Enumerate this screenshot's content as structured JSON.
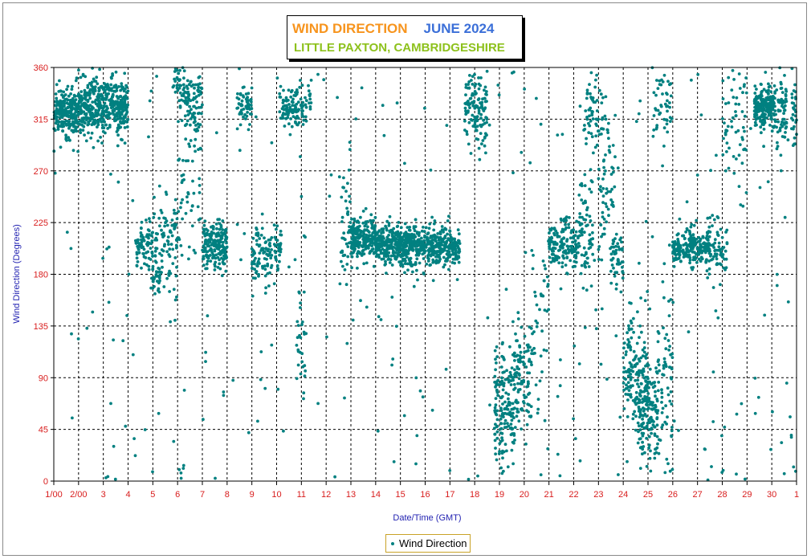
{
  "chart_data": {
    "type": "scatter",
    "title": "WIND DIRECTION",
    "title_month": "JUNE 2024",
    "subtitle": "LITTLE PAXTON, CAMBRIDGESHIRE",
    "xlabel": "Date/Time (GMT)",
    "ylabel": "Wind Direction (Degrees)",
    "ylim": [
      0,
      360
    ],
    "xlim": [
      0,
      30
    ],
    "yticks": [
      0,
      45,
      90,
      135,
      180,
      225,
      270,
      315,
      360
    ],
    "xtick_labels": [
      "1/00",
      "2/00",
      "3",
      "4",
      "5",
      "6",
      "7",
      "8",
      "9",
      "10",
      "11",
      "12",
      "13",
      "14",
      "15",
      "16",
      "17",
      "18",
      "19",
      "20",
      "21",
      "22",
      "23",
      "24",
      "25",
      "26",
      "27",
      "28",
      "29",
      "30",
      "1"
    ],
    "grid": true,
    "legend_position": "bottom-center",
    "series": [
      {
        "name": "Wind Direction",
        "color": "#008080",
        "clusters": [
          {
            "x": [
              0.0,
              1.0
            ],
            "y": 322,
            "sd": 10,
            "n": 260
          },
          {
            "x": [
              1.0,
              2.0
            ],
            "y": 325,
            "sd": 12,
            "n": 230
          },
          {
            "x": [
              2.0,
              3.0
            ],
            "y": 326,
            "sd": 12,
            "n": 230
          },
          {
            "x": [
              3.3,
              4.0
            ],
            "y": 205,
            "sd": 10,
            "n": 80
          },
          {
            "x": [
              3.9,
              4.3
            ],
            "y": 175,
            "sd": 6,
            "n": 30
          },
          {
            "x": [
              4.0,
              5.0
            ],
            "y": 210,
            "sd": 25,
            "n": 90
          },
          {
            "x": [
              4.8,
              5.5
            ],
            "y": 345,
            "sd": 12,
            "n": 50
          },
          {
            "x": [
              5.3,
              6.0
            ],
            "y": 325,
            "sd": 15,
            "n": 80
          },
          {
            "x": [
              5.0,
              6.0
            ],
            "y": 250,
            "sd": 35,
            "n": 50
          },
          {
            "x": [
              6.0,
              7.0
            ],
            "y": 205,
            "sd": 10,
            "n": 190
          },
          {
            "x": [
              7.4,
              8.0
            ],
            "y": 325,
            "sd": 8,
            "n": 60
          },
          {
            "x": [
              8.0,
              8.8
            ],
            "y": 195,
            "sd": 12,
            "n": 90
          },
          {
            "x": [
              8.9,
              9.2
            ],
            "y": 205,
            "sd": 10,
            "n": 35
          },
          {
            "x": [
              9.1,
              9.8
            ],
            "y": 325,
            "sd": 8,
            "n": 70
          },
          {
            "x": [
              9.8,
              10.4
            ],
            "y": 325,
            "sd": 12,
            "n": 50
          },
          {
            "x": [
              9.8,
              10.2
            ],
            "y": 130,
            "sd": 25,
            "n": 30
          },
          {
            "x": [
              11.6,
              12.0
            ],
            "y": 230,
            "sd": 25,
            "n": 40
          },
          {
            "x": [
              12.0,
              13.0
            ],
            "y": 210,
            "sd": 10,
            "n": 220
          },
          {
            "x": [
              13.0,
              14.0
            ],
            "y": 205,
            "sd": 8,
            "n": 230
          },
          {
            "x": [
              14.0,
              15.0
            ],
            "y": 205,
            "sd": 9,
            "n": 230
          },
          {
            "x": [
              15.0,
              16.4
            ],
            "y": 205,
            "sd": 9,
            "n": 250
          },
          {
            "x": [
              16.6,
              17.5
            ],
            "y": 325,
            "sd": 15,
            "n": 130
          },
          {
            "x": [
              17.8,
              18.6
            ],
            "y": 60,
            "sd": 30,
            "n": 160
          },
          {
            "x": [
              18.6,
              19.3
            ],
            "y": 90,
            "sd": 25,
            "n": 110
          },
          {
            "x": [
              19.3,
              20.0
            ],
            "y": 140,
            "sd": 40,
            "n": 40
          },
          {
            "x": [
              20.0,
              21.2
            ],
            "y": 205,
            "sd": 10,
            "n": 160
          },
          {
            "x": [
              21.2,
              21.8
            ],
            "y": 215,
            "sd": 25,
            "n": 70
          },
          {
            "x": [
              21.4,
              22.2
            ],
            "y": 320,
            "sd": 20,
            "n": 60
          },
          {
            "x": [
              22.0,
              22.8
            ],
            "y": 250,
            "sd": 40,
            "n": 70
          },
          {
            "x": [
              22.5,
              23.0
            ],
            "y": 195,
            "sd": 10,
            "n": 50
          },
          {
            "x": [
              23.0,
              24.0
            ],
            "y": 95,
            "sd": 25,
            "n": 140
          },
          {
            "x": [
              23.6,
              24.4
            ],
            "y": 60,
            "sd": 20,
            "n": 150
          },
          {
            "x": [
              24.4,
              25.0
            ],
            "y": 90,
            "sd": 40,
            "n": 60
          },
          {
            "x": [
              24.2,
              25.0
            ],
            "y": 330,
            "sd": 20,
            "n": 50
          },
          {
            "x": [
              25.0,
              26.5
            ],
            "y": 203,
            "sd": 8,
            "n": 230
          },
          {
            "x": [
              26.4,
              27.2
            ],
            "y": 200,
            "sd": 15,
            "n": 70
          },
          {
            "x": [
              27.0,
              28.0
            ],
            "y": 310,
            "sd": 30,
            "n": 60
          },
          {
            "x": [
              28.3,
              29.1
            ],
            "y": 325,
            "sd": 8,
            "n": 200
          },
          {
            "x": [
              29.1,
              29.6
            ],
            "y": 325,
            "sd": 15,
            "n": 70
          },
          {
            "x": [
              29.8,
              30.0
            ],
            "y": 320,
            "sd": 20,
            "n": 30
          }
        ],
        "scatter_noise": {
          "n": 260
        }
      }
    ]
  },
  "legend": {
    "label": "Wind Direction"
  }
}
